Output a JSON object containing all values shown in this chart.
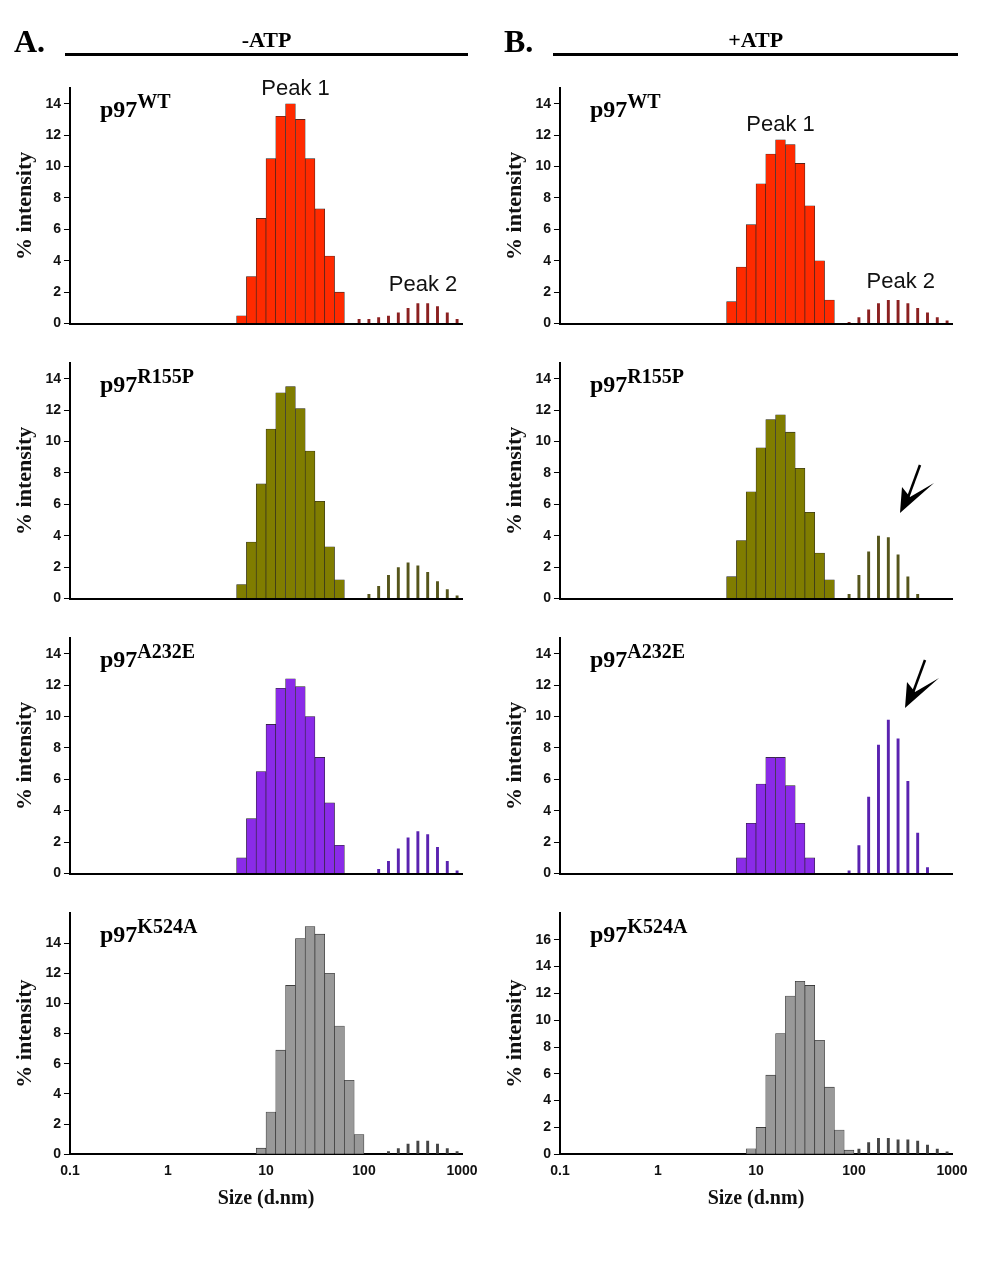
{
  "chart_data": [
    {
      "type": "histogram",
      "title": "p97$^{WT}$",
      "ylabel": "% intensity",
      "annotations": [
        "A.",
        "-ATP",
        {
          "text": "Peak 1",
          "x": 20,
          "y": 14
        },
        {
          "text": "Peak 2",
          "x": 400,
          "y": 1.5
        }
      ],
      "bins": [
        3.98,
        5.01,
        6.31,
        7.94,
        10,
        12.6,
        15.8,
        20,
        25.1,
        31.6,
        39.8,
        50.1,
        63.1,
        79.4,
        100,
        126,
        158,
        200,
        251,
        316,
        398,
        501,
        631,
        794,
        1000
      ],
      "log": "x",
      "xlim": [
        0.1,
        1000
      ],
      "xticks": [
        0.1,
        1,
        10,
        100,
        1000
      ],
      "ylim": [
        0,
        15
      ],
      "yticks": [
        0,
        2,
        4,
        6,
        8,
        10,
        12,
        14
      ],
      "tick_labels": "y",
      "series": [
        {
          "color": "#ff2a00",
          "values": [
            null,
            0.5,
            3,
            6.7,
            10.5,
            13.2,
            14,
            13,
            10.5,
            7.3,
            4.3,
            2,
            null,
            null,
            null,
            null,
            null,
            null,
            null,
            null,
            null,
            null,
            null,
            null
          ]
        },
        {
          "color": "#8b2020",
          "values": [
            null,
            null,
            null,
            null,
            null,
            null,
            null,
            null,
            null,
            null,
            null,
            null,
            null,
            0.3,
            0.3,
            0.4,
            0.5,
            0.7,
            1.0,
            1.3,
            1.3,
            1.1,
            0.7,
            0.3
          ]
        }
      ]
    },
    {
      "type": "histogram",
      "title": "p97$^{WT}$",
      "ylabel": "% intensity",
      "annotations": [
        "B.",
        "+ATP",
        {
          "text": "Peak 1",
          "x": 17.8,
          "y": 11.7
        },
        {
          "text": "Peak 2",
          "x": 300,
          "y": 1.7
        }
      ],
      "bins": [
        3.98,
        5.01,
        6.31,
        7.94,
        10,
        12.6,
        15.8,
        20,
        25.1,
        31.6,
        39.8,
        50.1,
        63.1,
        79.4,
        100,
        126,
        158,
        200,
        251,
        316,
        398,
        501,
        631,
        794,
        1000
      ],
      "log": "x",
      "xlim": [
        0.1,
        1000
      ],
      "xticks": [
        0.1,
        1,
        10,
        100,
        1000
      ],
      "ylim": [
        0,
        15
      ],
      "yticks": [
        0,
        2,
        4,
        6,
        8,
        10,
        12,
        14
      ],
      "tick_labels": "y",
      "series": [
        {
          "color": "#ff2a00",
          "values": [
            null,
            1.4,
            3.6,
            6.3,
            8.9,
            10.8,
            11.7,
            11.4,
            10.2,
            7.5,
            4.0,
            1.5,
            null,
            null,
            null,
            null,
            null,
            null,
            null,
            null,
            null,
            null,
            null,
            null
          ]
        },
        {
          "color": "#8b2020",
          "values": [
            null,
            null,
            null,
            null,
            null,
            null,
            null,
            null,
            null,
            null,
            null,
            null,
            null,
            0.1,
            0.4,
            0.9,
            1.3,
            1.5,
            1.5,
            1.3,
            1.0,
            0.7,
            0.4,
            0.2
          ]
        }
      ]
    },
    {
      "type": "histogram",
      "title": "p97$^{R155P}$",
      "ylabel": "% intensity",
      "bins": [
        3.98,
        5.01,
        6.31,
        7.94,
        10,
        12.6,
        15.8,
        20,
        25.1,
        31.6,
        39.8,
        50.1,
        63.1,
        79.4,
        100,
        126,
        158,
        200,
        251,
        316,
        398,
        501,
        631,
        794,
        1000
      ],
      "log": "x",
      "xlim": [
        0.1,
        1000
      ],
      "xticks": [
        0.1,
        1,
        10,
        100,
        1000
      ],
      "ylim": [
        0,
        15
      ],
      "yticks": [
        0,
        2,
        4,
        6,
        8,
        10,
        12,
        14
      ],
      "tick_labels": "y",
      "series": [
        {
          "color": "#807d00",
          "values": [
            null,
            0.9,
            3.6,
            7.3,
            10.8,
            13.1,
            13.5,
            12.1,
            9.4,
            6.2,
            3.3,
            1.2,
            null,
            null,
            null,
            null,
            null,
            null,
            null,
            null,
            null,
            null,
            null,
            null
          ]
        },
        {
          "color": "#55551a",
          "values": [
            null,
            null,
            null,
            null,
            null,
            null,
            null,
            null,
            null,
            null,
            null,
            null,
            null,
            null,
            0.3,
            0.8,
            1.5,
            2.0,
            2.3,
            2.1,
            1.7,
            1.1,
            0.6,
            0.2
          ]
        }
      ]
    },
    {
      "type": "histogram",
      "title": "p97$^{R155P}$",
      "ylabel": "% intensity",
      "bins": [
        3.98,
        5.01,
        6.31,
        7.94,
        10,
        12.6,
        15.8,
        20,
        25.1,
        31.6,
        39.8,
        50.1,
        63.1,
        79.4,
        100,
        126,
        158,
        200,
        251,
        316,
        398,
        501,
        631,
        794,
        1000
      ],
      "log": "x",
      "xlim": [
        0.1,
        1000
      ],
      "xticks": [
        0.1,
        1,
        10,
        100,
        1000
      ],
      "ylim": [
        0,
        15
      ],
      "yticks": [
        0,
        2,
        4,
        6,
        8,
        10,
        12,
        14
      ],
      "tick_labels": "y",
      "series": [
        {
          "color": "#807d00",
          "values": [
            null,
            1.4,
            3.7,
            6.8,
            9.6,
            11.4,
            11.7,
            10.6,
            8.3,
            5.5,
            2.9,
            1.2,
            null,
            null,
            null,
            null,
            null,
            null,
            null,
            null,
            null,
            null,
            null,
            null
          ]
        },
        {
          "color": "#55551a",
          "values": [
            null,
            null,
            null,
            null,
            null,
            null,
            null,
            null,
            null,
            null,
            null,
            null,
            null,
            0.3,
            1.5,
            3.0,
            4.0,
            3.9,
            2.8,
            1.4,
            0.3,
            null,
            null,
            null
          ]
        }
      ]
    },
    {
      "type": "histogram",
      "title": "p97$^{A232E}$",
      "ylabel": "% intensity",
      "bins": [
        3.98,
        5.01,
        6.31,
        7.94,
        10,
        12.6,
        15.8,
        20,
        25.1,
        31.6,
        39.8,
        50.1,
        63.1,
        79.4,
        100,
        126,
        158,
        200,
        251,
        316,
        398,
        501,
        631,
        794,
        1000
      ],
      "log": "x",
      "xlim": [
        0.1,
        1000
      ],
      "xticks": [
        0.1,
        1,
        10,
        100,
        1000
      ],
      "ylim": [
        0,
        15
      ],
      "yticks": [
        0,
        2,
        4,
        6,
        8,
        10,
        12,
        14
      ],
      "tick_labels": "y",
      "series": [
        {
          "color": "#8a2be8",
          "values": [
            null,
            1,
            3.5,
            6.5,
            9.5,
            11.8,
            12.4,
            11.9,
            10,
            7.4,
            4.5,
            1.8,
            null,
            null,
            null,
            null,
            null,
            null,
            null,
            null,
            null,
            null,
            null,
            null
          ]
        },
        {
          "color": "#5a22b0",
          "values": [
            null,
            null,
            null,
            null,
            null,
            null,
            null,
            null,
            null,
            null,
            null,
            null,
            null,
            null,
            null,
            0.3,
            0.8,
            1.6,
            2.3,
            2.7,
            2.5,
            1.7,
            0.8,
            0.2
          ]
        }
      ]
    },
    {
      "type": "histogram",
      "title": "p97$^{A232E}$",
      "ylabel": "% intensity",
      "bins": [
        3.98,
        5.01,
        6.31,
        7.94,
        10,
        12.6,
        15.8,
        20,
        25.1,
        31.6,
        39.8,
        50.1,
        63.1,
        79.4,
        100,
        126,
        158,
        200,
        251,
        316,
        398,
        501,
        631,
        794,
        1000
      ],
      "log": "x",
      "xlim": [
        0.1,
        1000
      ],
      "xticks": [
        0.1,
        1,
        10,
        100,
        1000
      ],
      "ylim": [
        0,
        15
      ],
      "yticks": [
        0,
        2,
        4,
        6,
        8,
        10,
        12,
        14
      ],
      "tick_labels": "y",
      "series": [
        {
          "color": "#8a2be8",
          "values": [
            null,
            null,
            1.0,
            3.2,
            5.7,
            7.4,
            7.4,
            5.6,
            3.2,
            1.0,
            null,
            null,
            null,
            null,
            null,
            null,
            null,
            null,
            null,
            null,
            null,
            null,
            null,
            null
          ]
        },
        {
          "color": "#5a22b0",
          "values": [
            null,
            null,
            null,
            null,
            null,
            null,
            null,
            null,
            null,
            null,
            null,
            null,
            null,
            0.2,
            1.8,
            4.9,
            8.2,
            9.8,
            8.6,
            5.9,
            2.6,
            0.4,
            null,
            null
          ]
        }
      ]
    },
    {
      "type": "histogram",
      "title": "p97$^{K524A}$",
      "xlabel": "Size (d.nm)",
      "ylabel": "% intensity",
      "bins": [
        3.98,
        5.01,
        6.31,
        7.94,
        10,
        12.6,
        15.8,
        20,
        25.1,
        31.6,
        39.8,
        50.1,
        63.1,
        79.4,
        100,
        126,
        158,
        200,
        251,
        316,
        398,
        501,
        631,
        794,
        1000
      ],
      "log": "x",
      "xlim": [
        0.1,
        1000
      ],
      "xticks": [
        0.1,
        1,
        10,
        100,
        1000
      ],
      "ylim": [
        0,
        16
      ],
      "yticks": [
        0,
        2,
        4,
        6,
        8,
        10,
        12,
        14
      ],
      "series": [
        {
          "color": "#999999",
          "values": [
            null,
            null,
            null,
            0.4,
            2.8,
            6.9,
            11.2,
            14.3,
            15.1,
            14.6,
            12,
            8.5,
            4.9,
            1.3,
            null,
            null,
            null,
            null,
            null,
            null,
            null,
            null,
            null,
            null
          ]
        },
        {
          "color": "#444444",
          "values": [
            null,
            null,
            null,
            null,
            null,
            null,
            null,
            null,
            null,
            null,
            null,
            null,
            null,
            null,
            null,
            null,
            0.2,
            0.4,
            0.7,
            0.9,
            0.9,
            0.7,
            0.4,
            0.2
          ]
        }
      ]
    },
    {
      "type": "histogram",
      "title": "p97$^{K524A}$",
      "xlabel": "Size (d.nm)",
      "ylabel": "% intensity",
      "bins": [
        3.98,
        5.01,
        6.31,
        7.94,
        10,
        12.6,
        15.8,
        20,
        25.1,
        31.6,
        39.8,
        50.1,
        63.1,
        79.4,
        100,
        126,
        158,
        200,
        251,
        316,
        398,
        501,
        631,
        794,
        1000
      ],
      "log": "x",
      "xlim": [
        0.1,
        1000
      ],
      "xticks": [
        0.1,
        1,
        10,
        100,
        1000
      ],
      "ylim": [
        0,
        18
      ],
      "yticks": [
        0,
        2,
        4,
        6,
        8,
        10,
        12,
        14,
        16
      ],
      "series": [
        {
          "color": "#999999",
          "values": [
            null,
            null,
            null,
            0.4,
            2.0,
            5.9,
            9.0,
            11.8,
            12.9,
            12.6,
            8.5,
            5.0,
            1.8,
            0.3,
            null,
            null,
            null,
            null,
            null,
            null,
            null,
            null,
            null,
            null
          ]
        },
        {
          "color": "#444444",
          "values": [
            null,
            null,
            null,
            null,
            null,
            null,
            null,
            null,
            null,
            null,
            null,
            null,
            null,
            null,
            0.4,
            0.9,
            1.2,
            1.2,
            1.1,
            1.1,
            1.0,
            0.7,
            0.4,
            0.2
          ]
        }
      ]
    }
  ]
}
